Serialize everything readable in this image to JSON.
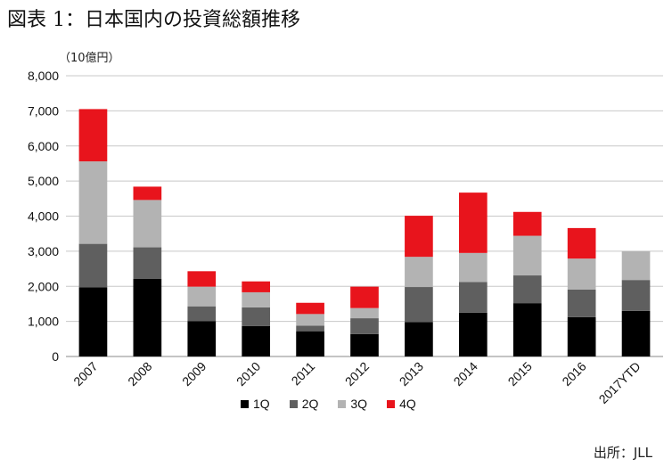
{
  "figure_title": "図表 1：日本国内の投資総額推移",
  "unit_label": "（10億円）",
  "source": "出所：JLL",
  "colors": {
    "1Q": "#000000",
    "2Q": "#5f5f5f",
    "3Q": "#b3b3b3",
    "4Q": "#e8141c"
  },
  "chart_data": {
    "type": "bar",
    "stacked": true,
    "categories": [
      "2007",
      "2008",
      "2009",
      "2010",
      "2011",
      "2012",
      "2013",
      "2014",
      "2015",
      "2016",
      "2017YTD"
    ],
    "series": [
      {
        "name": "1Q",
        "values": [
          1970,
          2210,
          1010,
          870,
          720,
          640,
          980,
          1250,
          1520,
          1120,
          1300
        ]
      },
      {
        "name": "2Q",
        "values": [
          1240,
          900,
          420,
          530,
          160,
          450,
          1000,
          870,
          790,
          790,
          880
        ]
      },
      {
        "name": "3Q",
        "values": [
          2350,
          1350,
          560,
          430,
          330,
          290,
          860,
          830,
          1130,
          880,
          820
        ]
      },
      {
        "name": "4Q",
        "values": [
          1490,
          380,
          440,
          310,
          320,
          610,
          1170,
          1720,
          680,
          870,
          0
        ]
      }
    ],
    "ylim": [
      0,
      8000
    ],
    "yticks": [
      "0",
      "1,000",
      "2,000",
      "3,000",
      "4,000",
      "5,000",
      "6,000",
      "7,000",
      "8,000"
    ],
    "grid": true,
    "legend_position": "bottom"
  }
}
